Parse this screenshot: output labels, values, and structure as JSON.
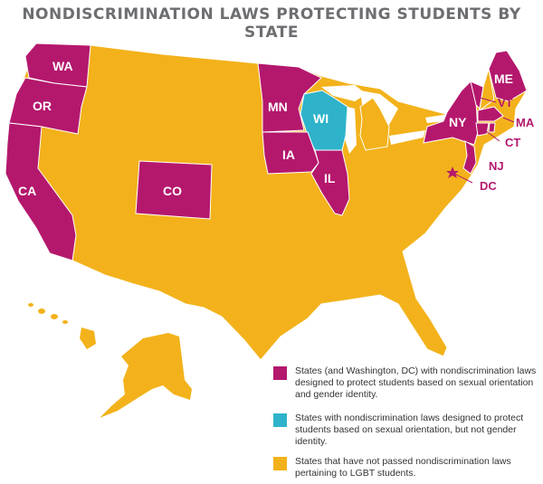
{
  "title": "NONDISCRIMINATION LAWS PROTECTING STUDENTS BY STATE",
  "colors": {
    "protected_full": "#b4186d",
    "protected_orientation_only": "#2eb3cb",
    "not_protected": "#f3b21b",
    "borders": "#ffffff",
    "title": "#6d6e71",
    "dc_star": "#b4186d"
  },
  "state_labels": {
    "wa": "WA",
    "or": "OR",
    "ca": "CA",
    "co": "CO",
    "mn": "MN",
    "wi": "WI",
    "ia": "IA",
    "il": "IL",
    "ny": "NY",
    "me": "ME",
    "vt": "VT",
    "ma": "MA",
    "ct": "CT",
    "nj": "NJ",
    "dc": "DC"
  },
  "legend": [
    {
      "color": "#b4186d",
      "text": "States (and Washington, DC) with nondiscrimination laws designed to protect students based on sexual orientation and gender identity."
    },
    {
      "color": "#2eb3cb",
      "text": "States with nondiscrimination laws designed to protect students based on sexual orientation, but not gender identity."
    },
    {
      "color": "#f3b21b",
      "text": "States that have not passed nondiscrimination laws pertaining to LGBT students."
    }
  ]
}
